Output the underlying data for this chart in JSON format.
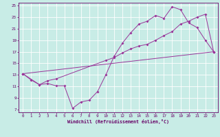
{
  "xlabel": "Windchill (Refroidissement éolien,°C)",
  "bg_color": "#c8ece6",
  "grid_color": "#ffffff",
  "line_color": "#993399",
  "xmin": -0.5,
  "xmax": 23.5,
  "ymin": 6.5,
  "ymax": 25.5,
  "yticks": [
    7,
    9,
    11,
    13,
    15,
    17,
    19,
    21,
    23,
    25
  ],
  "xticks": [
    0,
    1,
    2,
    3,
    4,
    5,
    6,
    7,
    8,
    9,
    10,
    11,
    12,
    13,
    14,
    15,
    16,
    17,
    18,
    19,
    20,
    21,
    22,
    23
  ],
  "line1_x": [
    0,
    1,
    2,
    3,
    4,
    5,
    6,
    7,
    8,
    9,
    10,
    11,
    12,
    13,
    14,
    15,
    16,
    17,
    18,
    19,
    20,
    21,
    22,
    23
  ],
  "line1_y": [
    13.2,
    12.1,
    11.3,
    11.5,
    11.1,
    11.1,
    7.2,
    8.3,
    8.6,
    10.1,
    13.0,
    16.2,
    18.5,
    20.3,
    21.8,
    22.3,
    23.3,
    22.8,
    24.8,
    24.3,
    22.0,
    21.2,
    19.0,
    17.0
  ],
  "line2_x": [
    0,
    2,
    3,
    4,
    10,
    11,
    12,
    13,
    14,
    15,
    16,
    17,
    18,
    19,
    20,
    21,
    22,
    23
  ],
  "line2_y": [
    13.2,
    11.3,
    12.0,
    12.3,
    15.5,
    16.0,
    16.8,
    17.5,
    18.0,
    18.3,
    19.0,
    19.8,
    20.5,
    21.8,
    22.3,
    23.0,
    23.5,
    17.0
  ],
  "line3_x": [
    0,
    23
  ],
  "line3_y": [
    13.2,
    17.0
  ]
}
